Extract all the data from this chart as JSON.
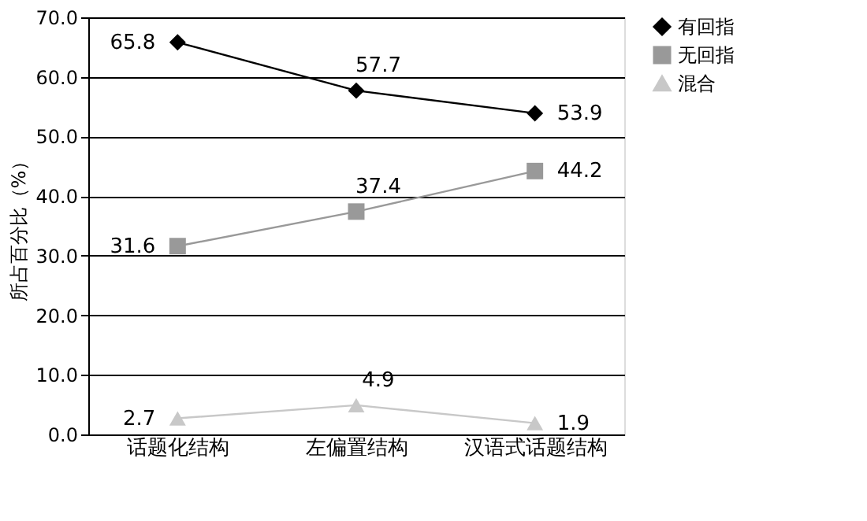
{
  "chart_data": {
    "type": "line",
    "ylabel": "所占百分比（%）",
    "categories": [
      "话题化结构",
      "左偏置结构",
      "汉语式话题结构"
    ],
    "series": [
      {
        "name": "有回指",
        "color": "#000000",
        "marker": "diamond",
        "values": [
          65.8,
          57.7,
          53.9
        ]
      },
      {
        "name": "无回指",
        "color": "#999999",
        "marker": "square",
        "values": [
          31.6,
          37.4,
          44.2
        ]
      },
      {
        "name": "混合",
        "color": "#c8c8c8",
        "marker": "triangle",
        "values": [
          2.7,
          4.9,
          1.9
        ]
      }
    ],
    "ylim": [
      0,
      70
    ],
    "yticks": [
      {
        "value": 0,
        "label": "0.0"
      },
      {
        "value": 10,
        "label": "10.0"
      },
      {
        "value": 20,
        "label": "20.0"
      },
      {
        "value": 30,
        "label": "30.0"
      },
      {
        "value": 40,
        "label": "40.0"
      },
      {
        "value": 50,
        "label": "50.0"
      },
      {
        "value": 60,
        "label": "60.0"
      },
      {
        "value": 70,
        "label": "70.0"
      }
    ],
    "grid": "y",
    "legend": "right",
    "data_labels": true,
    "line_style": "solid"
  }
}
